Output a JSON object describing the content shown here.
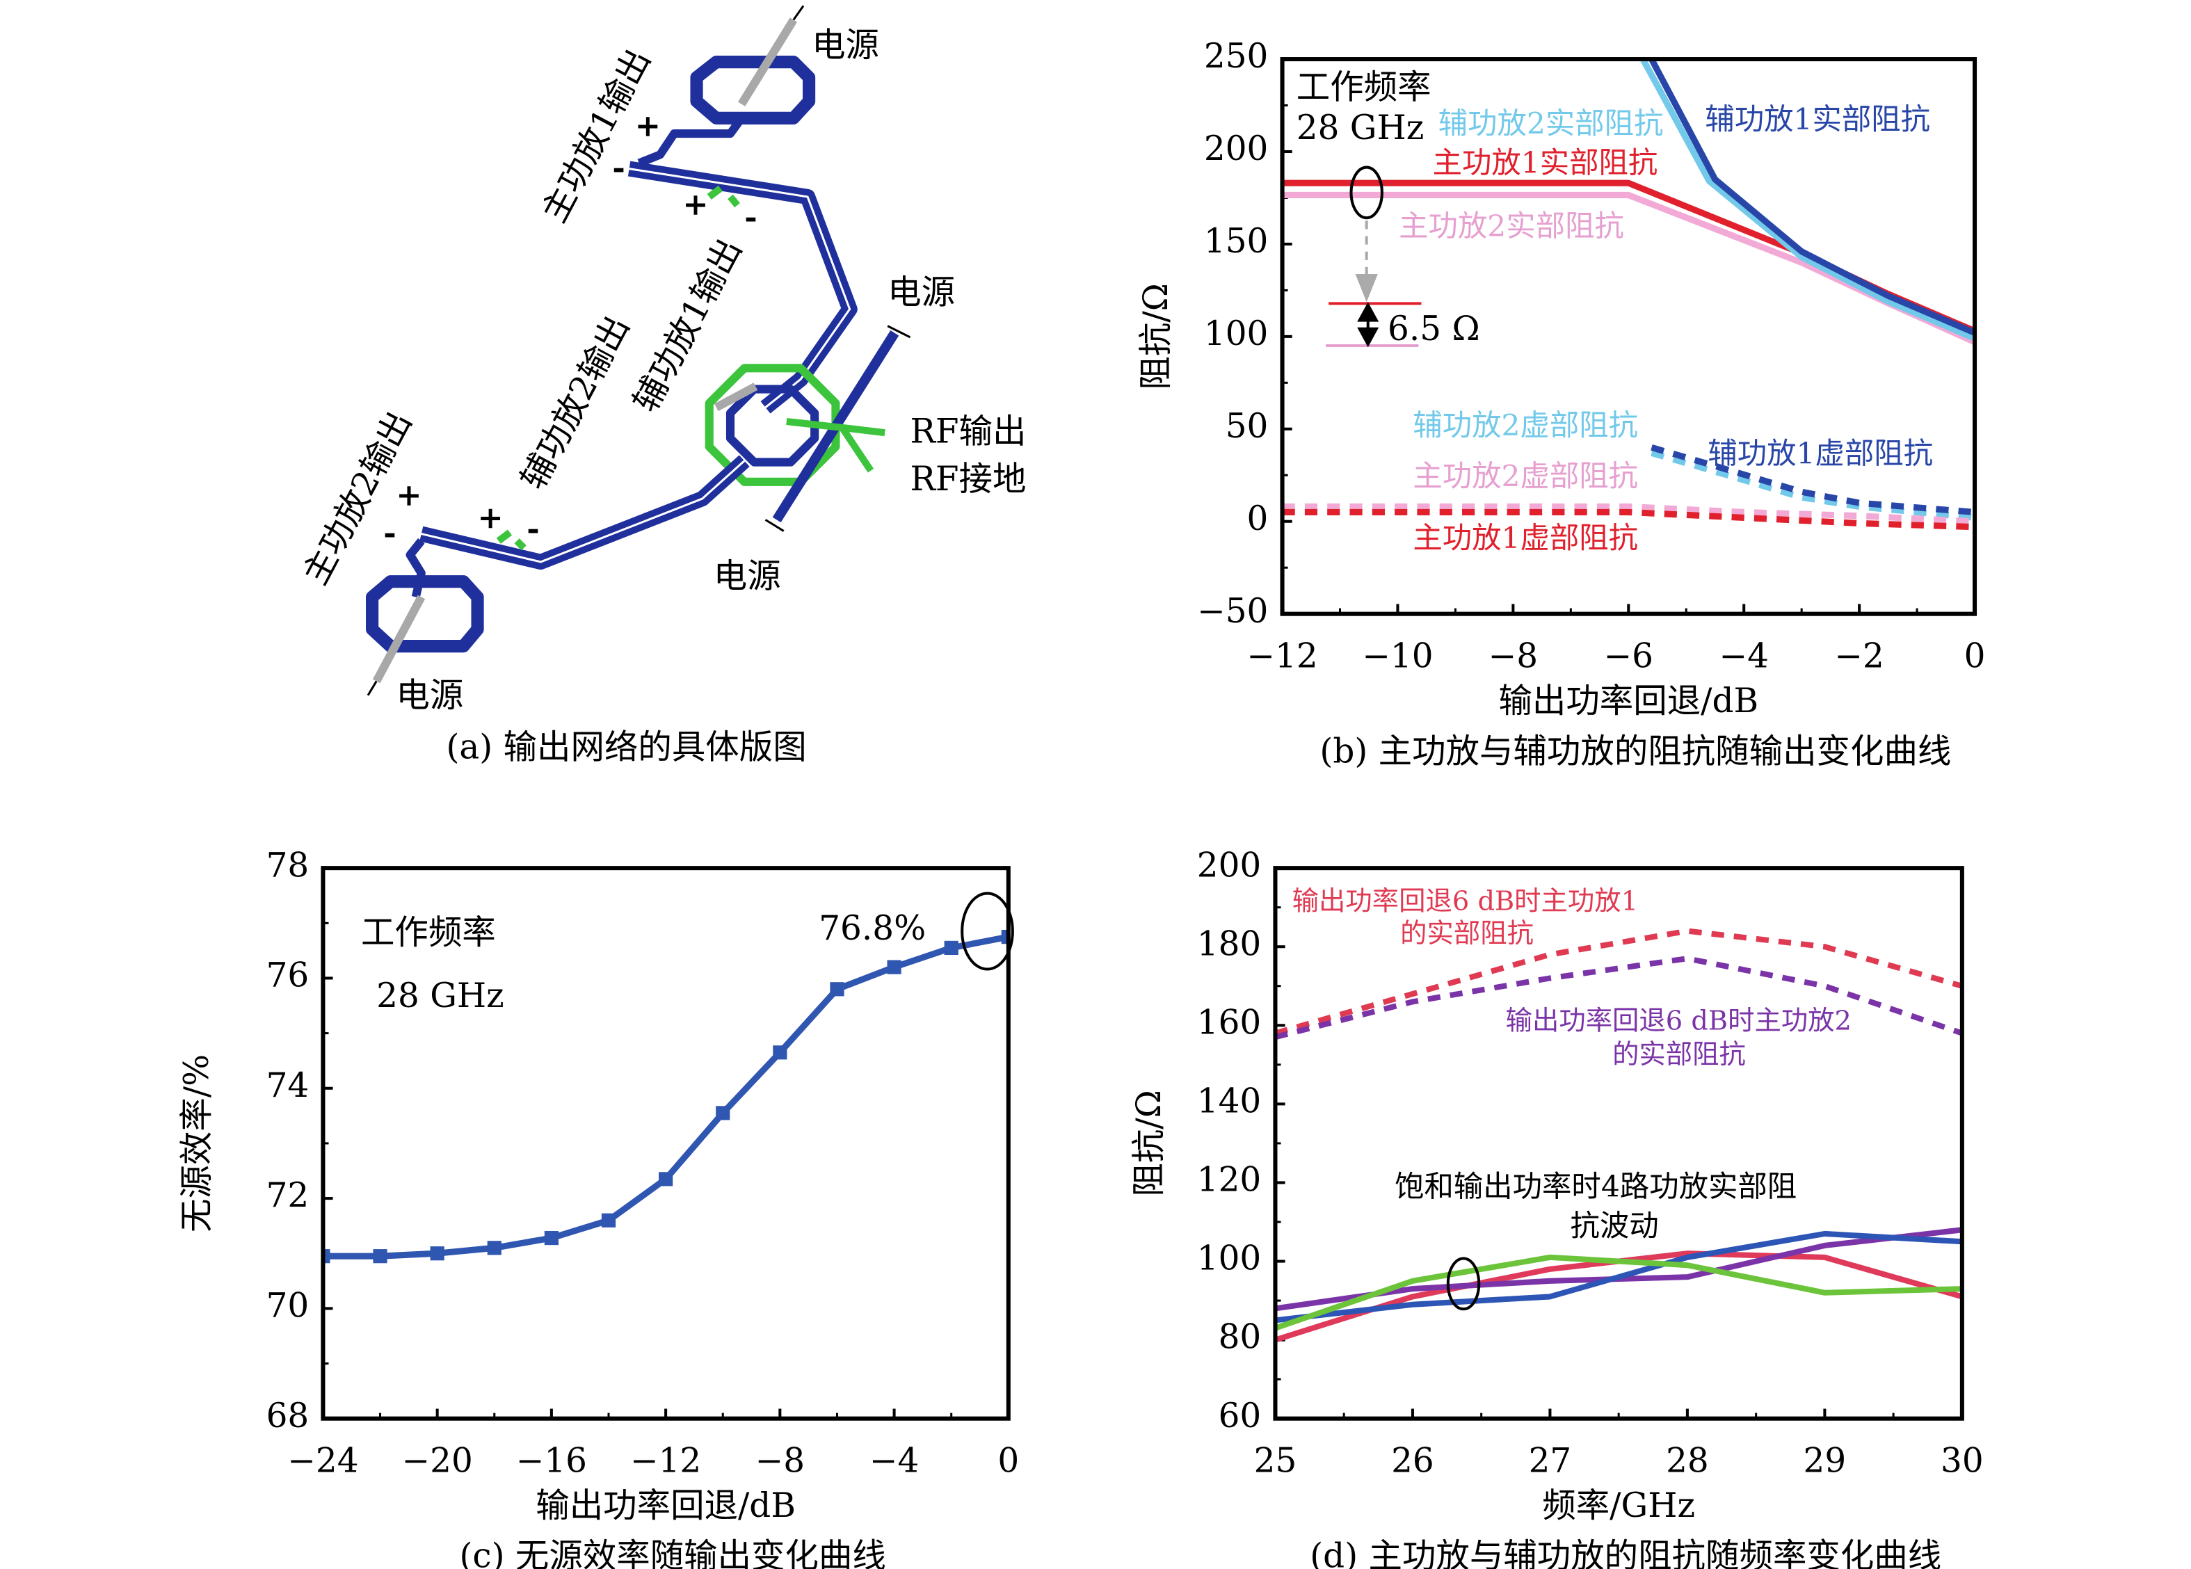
{
  "panel_a": {
    "caption": "(a) 输出网络的具体版图",
    "labels": {
      "power_top": "电源",
      "power_right": "电源",
      "power_mid": "电源",
      "power_bottom": "电源",
      "rf_out": "RF输出",
      "rf_gnd": "RF接地",
      "main1_out": "主功放1输出",
      "aux1_out": "辅功放1输出",
      "aux2_out": "辅功放2输出",
      "main2_out": "主功放2输出",
      "plus": "+",
      "minus": "-"
    },
    "colors": {
      "trace": "#1f2f9c",
      "secondary": "#3cc43c",
      "supply": "#a8a8a8"
    }
  },
  "chart_data": [
    {
      "id": "b",
      "type": "line",
      "caption": "(b) 主功放与辅功放的阻抗随输出变化曲线",
      "xlabel": "输出功率回退/dB",
      "ylabel": "阻抗/Ω",
      "xlim": [
        -12,
        0
      ],
      "ylim": [
        -50,
        250
      ],
      "xticks": [
        -12,
        -10,
        -8,
        -6,
        -4,
        -2,
        0
      ],
      "xtick_labels": [
        "−12",
        "−10",
        "−8",
        "−6",
        "−4",
        "−2",
        "0"
      ],
      "yticks": [
        -50,
        0,
        50,
        100,
        150,
        200,
        250
      ],
      "ytick_labels": [
        "−50",
        "0",
        "50",
        "100",
        "150",
        "200",
        "250"
      ],
      "annotation_title": "工作频率",
      "annotation_freq": "28 GHz",
      "annotation_delta": "6.5 Ω",
      "series": [
        {
          "name": "主功放1实部阻抗",
          "color": "#e0202c",
          "dash": false,
          "x": [
            -12,
            -6,
            -3,
            -1.5,
            0
          ],
          "y": [
            183,
            183,
            145,
            123,
            103
          ]
        },
        {
          "name": "主功放2实部阻抗",
          "color": "#f2a9d6",
          "dash": false,
          "x": [
            -12,
            -6,
            -3,
            -1.5,
            0
          ],
          "y": [
            176.5,
            176.5,
            140,
            118,
            97
          ]
        },
        {
          "name": "辅功放2实部阻抗",
          "color": "#72c9ea",
          "dash": false,
          "x": [
            -5.75,
            -4.6,
            -3,
            -1.5,
            0
          ],
          "y": [
            250,
            184,
            143,
            119,
            99
          ]
        },
        {
          "name": "辅功放1实部阻抗",
          "color": "#2846a8",
          "dash": false,
          "x": [
            -5.6,
            -4.5,
            -3,
            -1.5,
            0
          ],
          "y": [
            250,
            185,
            146,
            122,
            102
          ]
        },
        {
          "name": "辅功放2虚部阻抗",
          "color": "#72c9ea",
          "dash": true,
          "x": [
            -5.6,
            -4.5,
            -3,
            -2,
            0
          ],
          "y": [
            37,
            27,
            13,
            8,
            2
          ]
        },
        {
          "name": "辅功放1虚部阻抗",
          "color": "#2846a8",
          "dash": true,
          "x": [
            -5.6,
            -4.5,
            -3,
            -2,
            0
          ],
          "y": [
            40,
            30,
            16,
            10,
            5
          ]
        },
        {
          "name": "主功放2虚部阻抗",
          "color": "#f2a9d6",
          "dash": true,
          "x": [
            -12,
            -6,
            -4,
            -2,
            0
          ],
          "y": [
            8,
            8,
            5,
            3,
            0
          ]
        },
        {
          "name": "主功放1虚部阻抗",
          "color": "#e0202c",
          "dash": true,
          "x": [
            -12,
            -6,
            -4,
            -2,
            0
          ],
          "y": [
            5,
            5,
            2,
            -1,
            -3
          ]
        }
      ]
    },
    {
      "id": "c",
      "type": "line",
      "caption": "(c) 无源效率随输出变化曲线",
      "xlabel": "输出功率回退/dB",
      "ylabel": "无源效率/%",
      "xlim": [
        -24,
        0
      ],
      "ylim": [
        68,
        78
      ],
      "xticks": [
        -24,
        -20,
        -16,
        -12,
        -8,
        -4,
        0
      ],
      "xtick_labels": [
        "−24",
        "−20",
        "−16",
        "−12",
        "−8",
        "−4",
        "0"
      ],
      "yticks": [
        68,
        70,
        72,
        74,
        76,
        78
      ],
      "ytick_labels": [
        "68",
        "70",
        "72",
        "74",
        "76",
        "78"
      ],
      "annotation_title": "工作频率",
      "annotation_freq": "28 GHz",
      "annotation_peak": "76.8%",
      "series": [
        {
          "color": "#2f56b0",
          "marker": "square",
          "x": [
            -24,
            -22,
            -20,
            -18,
            -16,
            -14,
            -12,
            -10,
            -8,
            -6,
            -4,
            -2,
            0
          ],
          "y": [
            70.95,
            70.95,
            71.0,
            71.1,
            71.28,
            71.6,
            72.35,
            73.55,
            74.65,
            75.8,
            76.2,
            76.55,
            76.75
          ]
        }
      ]
    },
    {
      "id": "d",
      "type": "line",
      "caption": "(d) 主功放与辅功放的阻抗随频率变化曲线",
      "xlabel": "频率/GHz",
      "ylabel": "阻抗/Ω",
      "xlim": [
        25,
        30
      ],
      "ylim": [
        60,
        200
      ],
      "xticks": [
        25,
        26,
        27,
        28,
        29,
        30
      ],
      "xtick_labels": [
        "25",
        "26",
        "27",
        "28",
        "29",
        "30"
      ],
      "yticks": [
        60,
        80,
        100,
        120,
        140,
        160,
        180,
        200
      ],
      "ytick_labels": [
        "60",
        "80",
        "100",
        "120",
        "140",
        "160",
        "180",
        "200"
      ],
      "annotation_red_1": "输出功率回退6 dB时主功放1",
      "annotation_red_2": "的实部阻抗",
      "annotation_purple_1": "输出功率回退6 dB时主功放2",
      "annotation_purple_2": "的实部阻抗",
      "annotation_black_1": "饱和输出功率时4路功放实部阻",
      "annotation_black_2": "抗波动",
      "series": [
        {
          "color": "#e03a52",
          "dash": true,
          "x": [
            25,
            26,
            27,
            28,
            29,
            30
          ],
          "y": [
            158,
            168,
            178,
            184,
            180,
            170
          ]
        },
        {
          "color": "#7b34a8",
          "dash": true,
          "x": [
            25,
            26,
            27,
            28,
            29,
            30
          ],
          "y": [
            157,
            166,
            172,
            177,
            170,
            158
          ]
        },
        {
          "color": "#e03a5a",
          "dash": false,
          "x": [
            25,
            26,
            27,
            28,
            29,
            30
          ],
          "y": [
            80,
            91,
            98,
            102,
            101,
            91
          ]
        },
        {
          "color": "#7b34a8",
          "dash": false,
          "x": [
            25,
            26,
            27,
            28,
            29,
            30
          ],
          "y": [
            88,
            93,
            95,
            96,
            104,
            108
          ]
        },
        {
          "color": "#2c55b5",
          "dash": false,
          "x": [
            25,
            26,
            27,
            28,
            29,
            30
          ],
          "y": [
            85,
            89,
            91,
            101,
            107,
            105
          ]
        },
        {
          "color": "#6cc43a",
          "dash": false,
          "x": [
            25,
            26,
            27,
            28,
            29,
            30
          ],
          "y": [
            83,
            95,
            101,
            99,
            92,
            93
          ]
        }
      ]
    }
  ]
}
